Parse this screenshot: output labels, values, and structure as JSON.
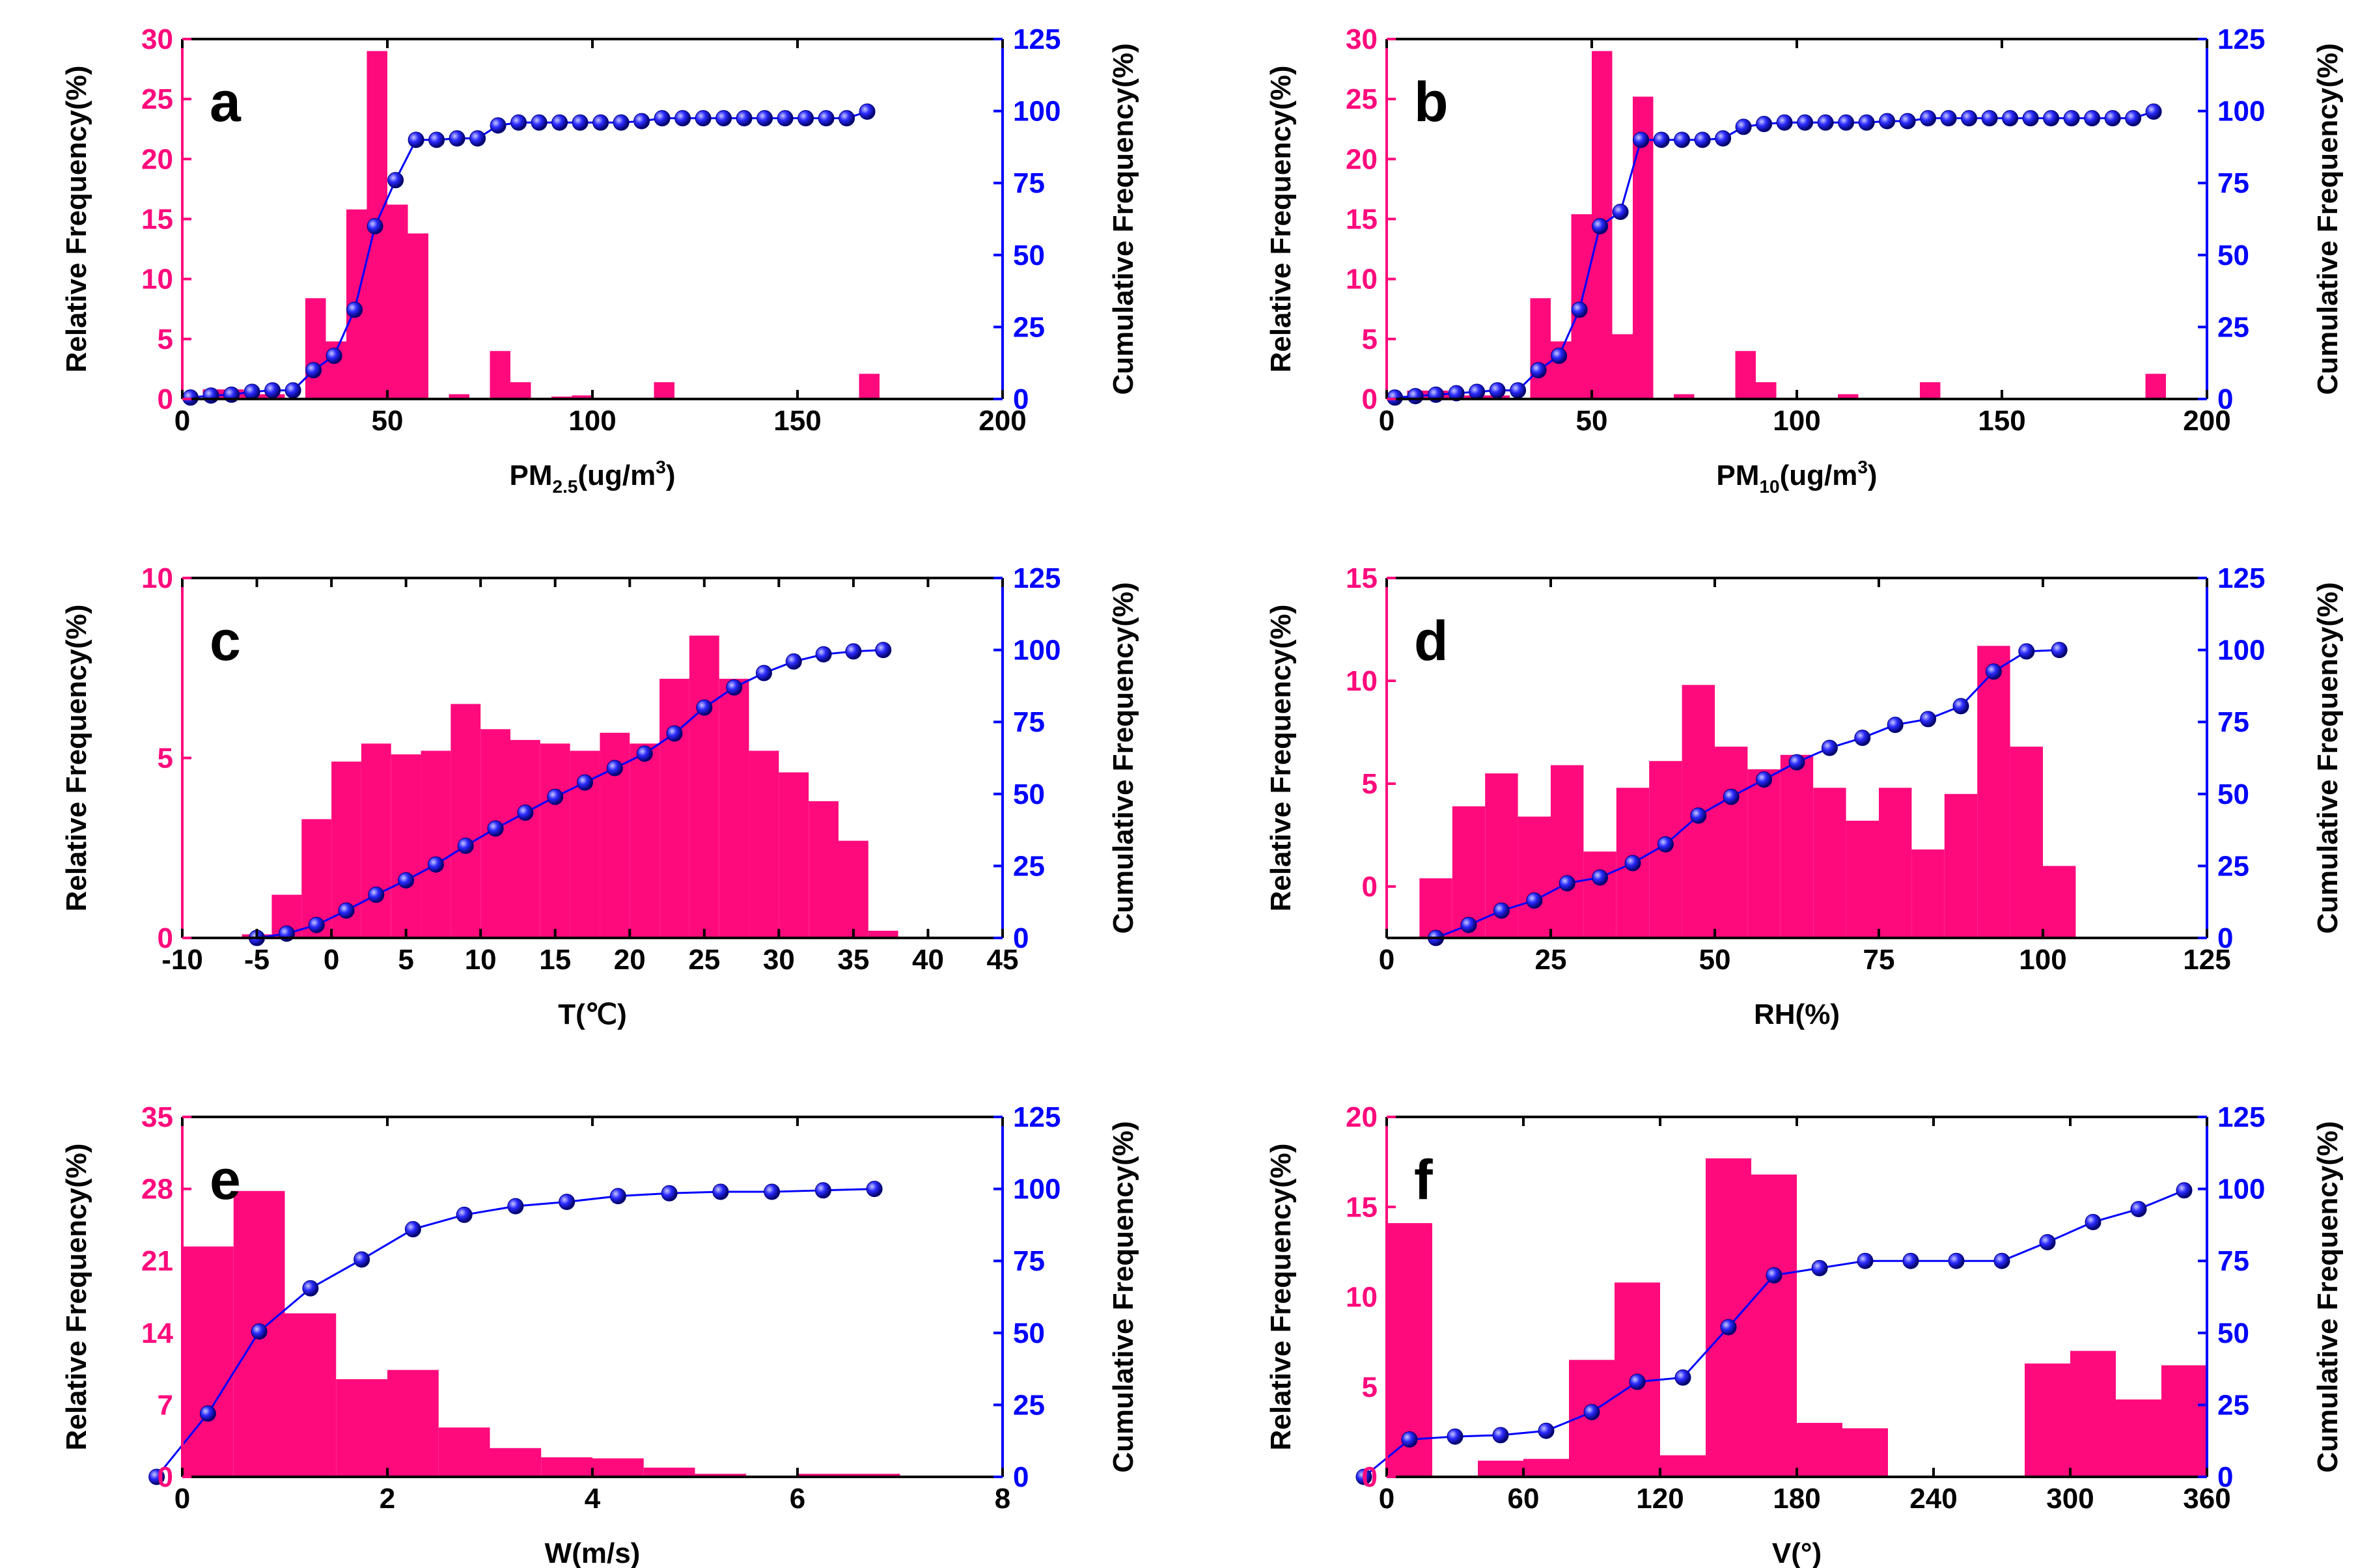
{
  "colors": {
    "bar": "#ff0a7c",
    "left_axis": "#ff0a7c",
    "right_axis": "#0000ff",
    "line": "#0000ff",
    "axes": "#000000"
  },
  "chart_data": [
    {
      "type": "bar",
      "letter": "a",
      "title": "",
      "xlabel": {
        "main": "PM",
        "sub": "2.5",
        "unit_pre": "(ug/m",
        "sup": "3",
        "unit_post": ")"
      },
      "ylabel_left": "Relative Frequency(%)",
      "ylabel_right": "Cumulative Frequency(%)",
      "xlim": [
        0,
        200
      ],
      "xticks": [
        "0",
        "50",
        "100",
        "150",
        "200"
      ],
      "ylim_left": [
        0,
        30
      ],
      "yticks_left": [
        "0",
        "5",
        "10",
        "15",
        "20",
        "25",
        "30"
      ],
      "ylim_right": [
        0,
        125
      ],
      "yticks_right": [
        "0",
        "25",
        "50",
        "75",
        "100",
        "125"
      ],
      "bars": [
        [
          5,
          10,
          0.8
        ],
        [
          10,
          15,
          0.8
        ],
        [
          15,
          20,
          0.4
        ],
        [
          20,
          25,
          0.4
        ],
        [
          30,
          35,
          8.4
        ],
        [
          35,
          40,
          4.8
        ],
        [
          40,
          45,
          15.8
        ],
        [
          45,
          50,
          29
        ],
        [
          50,
          55,
          16.2
        ],
        [
          55,
          60,
          13.8
        ],
        [
          65,
          70,
          0.4
        ],
        [
          75,
          80,
          4
        ],
        [
          80,
          85,
          1.4
        ],
        [
          90,
          95,
          0.2
        ],
        [
          95,
          100,
          0.3
        ],
        [
          115,
          120,
          1.4
        ],
        [
          165,
          170,
          2.1
        ]
      ],
      "cumulative": [
        [
          2,
          0.5
        ],
        [
          7,
          1.2
        ],
        [
          12,
          1.5
        ],
        [
          17,
          2.5
        ],
        [
          22,
          3
        ],
        [
          27,
          3
        ],
        [
          32,
          10
        ],
        [
          37,
          15
        ],
        [
          42,
          31
        ],
        [
          47,
          60
        ],
        [
          52,
          76
        ],
        [
          57,
          90
        ],
        [
          62,
          90
        ],
        [
          67,
          90.5
        ],
        [
          72,
          90.5
        ],
        [
          77,
          95
        ],
        [
          82,
          96
        ],
        [
          87,
          96
        ],
        [
          92,
          96
        ],
        [
          97,
          96
        ],
        [
          102,
          96
        ],
        [
          107,
          96
        ],
        [
          112,
          96.5
        ],
        [
          117,
          97.5
        ],
        [
          122,
          97.5
        ],
        [
          127,
          97.5
        ],
        [
          132,
          97.5
        ],
        [
          137,
          97.5
        ],
        [
          142,
          97.5
        ],
        [
          147,
          97.5
        ],
        [
          152,
          97.5
        ],
        [
          157,
          97.5
        ],
        [
          162,
          97.5
        ],
        [
          167,
          99.8
        ]
      ]
    },
    {
      "type": "bar",
      "letter": "b",
      "title": "",
      "xlabel": {
        "main": "PM",
        "sub": "10",
        "unit_pre": "(ug/m",
        "sup": "3",
        "unit_post": ")"
      },
      "ylabel_left": "Relative Frequency(%)",
      "ylabel_right": "Cumulative Frequency(%)",
      "xlim": [
        0,
        200
      ],
      "xticks": [
        "0",
        "50",
        "100",
        "150",
        "200"
      ],
      "ylim_left": [
        0,
        30
      ],
      "yticks_left": [
        "0",
        "5",
        "10",
        "15",
        "20",
        "25",
        "30"
      ],
      "ylim_right": [
        0,
        125
      ],
      "yticks_right": [
        "0",
        "25",
        "50",
        "75",
        "100",
        "125"
      ],
      "bars": [
        [
          5,
          10,
          0.7
        ],
        [
          10,
          15,
          0.7
        ],
        [
          15,
          20,
          0.3
        ],
        [
          20,
          25,
          0.3
        ],
        [
          25,
          30,
          0.3
        ],
        [
          35,
          40,
          8.4
        ],
        [
          40,
          45,
          4.8
        ],
        [
          45,
          50,
          15.4
        ],
        [
          50,
          55,
          29
        ],
        [
          55,
          60,
          5.4
        ],
        [
          60,
          65,
          25.2
        ],
        [
          70,
          75,
          0.4
        ],
        [
          85,
          90,
          4
        ],
        [
          90,
          95,
          1.4
        ],
        [
          110,
          115,
          0.4
        ],
        [
          130,
          135,
          1.4
        ],
        [
          185,
          190,
          2.1
        ]
      ],
      "cumulative": [
        [
          2,
          0.5
        ],
        [
          7,
          1
        ],
        [
          12,
          1.5
        ],
        [
          17,
          2
        ],
        [
          22,
          2.5
        ],
        [
          27,
          3
        ],
        [
          32,
          3
        ],
        [
          37,
          10
        ],
        [
          42,
          15
        ],
        [
          47,
          31
        ],
        [
          52,
          60
        ],
        [
          57,
          65
        ],
        [
          62,
          90
        ],
        [
          67,
          90
        ],
        [
          72,
          90
        ],
        [
          77,
          90
        ],
        [
          82,
          90.5
        ],
        [
          87,
          94.5
        ],
        [
          92,
          95.5
        ],
        [
          97,
          96
        ],
        [
          102,
          96
        ],
        [
          107,
          96
        ],
        [
          112,
          96
        ],
        [
          117,
          96
        ],
        [
          122,
          96.5
        ],
        [
          127,
          96.5
        ],
        [
          132,
          97.5
        ],
        [
          137,
          97.5
        ],
        [
          142,
          97.5
        ],
        [
          147,
          97.5
        ],
        [
          152,
          97.5
        ],
        [
          157,
          97.5
        ],
        [
          162,
          97.5
        ],
        [
          167,
          97.5
        ],
        [
          172,
          97.5
        ],
        [
          177,
          97.5
        ],
        [
          182,
          97.5
        ],
        [
          187,
          99.8
        ]
      ]
    },
    {
      "type": "bar",
      "letter": "c",
      "title": "",
      "xlabel": {
        "main": "T(℃)",
        "sub": "",
        "unit_pre": "",
        "sup": "",
        "unit_post": ""
      },
      "ylabel_left": "Relative Frequency(%)",
      "ylabel_right": "Cumulative Frequency(%)",
      "xlim": [
        -10,
        45
      ],
      "xticks": [
        "-10",
        "-5",
        "0",
        "5",
        "10",
        "15",
        "20",
        "25",
        "30",
        "35",
        "40",
        "45"
      ],
      "ylim_left": [
        0,
        10
      ],
      "yticks_left": [
        "0",
        "5",
        "10"
      ],
      "ylim_right": [
        0,
        125
      ],
      "yticks_right": [
        "0",
        "25",
        "50",
        "75",
        "100",
        "125"
      ],
      "bars": [
        [
          -6,
          -4,
          0.1
        ],
        [
          -4,
          -2,
          1.2
        ],
        [
          -2,
          0,
          3.3
        ],
        [
          0,
          2,
          4.9
        ],
        [
          2,
          4,
          5.4
        ],
        [
          4,
          6,
          5.1
        ],
        [
          6,
          8,
          5.2
        ],
        [
          8,
          10,
          6.5
        ],
        [
          10,
          12,
          5.8
        ],
        [
          12,
          14,
          5.5
        ],
        [
          14,
          16,
          5.4
        ],
        [
          16,
          18,
          5.2
        ],
        [
          18,
          20,
          5.7
        ],
        [
          20,
          22,
          5.4
        ],
        [
          22,
          24,
          7.2
        ],
        [
          24,
          26,
          8.4
        ],
        [
          26,
          28,
          7.2
        ],
        [
          28,
          30,
          5.2
        ],
        [
          30,
          32,
          4.6
        ],
        [
          32,
          34,
          3.8
        ],
        [
          34,
          36,
          2.7
        ],
        [
          36,
          38,
          0.2
        ]
      ],
      "cumulative": [
        [
          -5,
          0
        ],
        [
          -3,
          1.5
        ],
        [
          -1,
          4.5
        ],
        [
          1,
          9.5
        ],
        [
          3,
          15
        ],
        [
          5,
          20
        ],
        [
          7,
          25.5
        ],
        [
          9,
          32
        ],
        [
          11,
          38
        ],
        [
          13,
          43.5
        ],
        [
          15,
          49
        ],
        [
          17,
          54
        ],
        [
          19,
          59
        ],
        [
          21,
          64
        ],
        [
          23,
          71
        ],
        [
          25,
          80
        ],
        [
          27,
          87
        ],
        [
          29,
          92
        ],
        [
          31,
          96
        ],
        [
          33,
          98.5
        ],
        [
          35,
          99.5
        ],
        [
          37,
          100
        ]
      ]
    },
    {
      "type": "bar",
      "letter": "d",
      "title": "",
      "xlabel": {
        "main": "RH(%)",
        "sub": "",
        "unit_pre": "",
        "sup": "",
        "unit_post": ""
      },
      "ylabel_left": "Relative Frequency(%)",
      "ylabel_right": "Cumulative Frequency(%)",
      "xlim": [
        0,
        125
      ],
      "xticks": [
        "0",
        "25",
        "50",
        "75",
        "100",
        "125"
      ],
      "ylim_left": [
        -2.5,
        15
      ],
      "yticks_left": [
        "0",
        "5",
        "10",
        "15"
      ],
      "ylim_right": [
        0,
        125
      ],
      "yticks_right": [
        "0",
        "25",
        "50",
        "75",
        "100",
        "125"
      ],
      "bars": [
        [
          5,
          10,
          0.4
        ],
        [
          10,
          15,
          3.9
        ],
        [
          15,
          20,
          5.5
        ],
        [
          20,
          25,
          3.4
        ],
        [
          25,
          30,
          5.9
        ],
        [
          30,
          35,
          1.7
        ],
        [
          35,
          40,
          4.8
        ],
        [
          40,
          45,
          6.1
        ],
        [
          45,
          50,
          9.8
        ],
        [
          50,
          55,
          6.8
        ],
        [
          55,
          60,
          5.7
        ],
        [
          60,
          65,
          6.4
        ],
        [
          65,
          70,
          4.8
        ],
        [
          70,
          75,
          3.2
        ],
        [
          75,
          80,
          4.8
        ],
        [
          80,
          85,
          1.8
        ],
        [
          85,
          90,
          4.5
        ],
        [
          90,
          95,
          11.7
        ],
        [
          95,
          100,
          6.8
        ],
        [
          100,
          105,
          1.0
        ]
      ],
      "cumulative": [
        [
          7.5,
          0
        ],
        [
          12.5,
          4.5
        ],
        [
          17.5,
          9.5
        ],
        [
          22.5,
          13
        ],
        [
          27.5,
          19
        ],
        [
          32.5,
          21
        ],
        [
          37.5,
          26
        ],
        [
          42.5,
          32.5
        ],
        [
          47.5,
          42.5
        ],
        [
          52.5,
          49
        ],
        [
          57.5,
          55
        ],
        [
          62.5,
          61
        ],
        [
          67.5,
          66
        ],
        [
          72.5,
          69.5
        ],
        [
          77.5,
          74
        ],
        [
          82.5,
          76
        ],
        [
          87.5,
          80.5
        ],
        [
          92.5,
          92.5
        ],
        [
          97.5,
          99.5
        ],
        [
          102.5,
          100
        ]
      ]
    },
    {
      "type": "bar",
      "letter": "e",
      "title": "",
      "xlabel": {
        "main": "W(m/s)",
        "sub": "",
        "unit_pre": "",
        "sup": "",
        "unit_post": ""
      },
      "ylabel_left": "Relative Frequency(%)",
      "ylabel_right": "Cumulative Frequency(%)",
      "xlim": [
        0,
        8
      ],
      "xticks": [
        "0",
        "2",
        "4",
        "6",
        "8"
      ],
      "ylim_left": [
        0,
        35
      ],
      "yticks_left": [
        "0",
        "7",
        "14",
        "21",
        "28",
        "35"
      ],
      "ylim_right": [
        0,
        125
      ],
      "yticks_right": [
        "0",
        "25",
        "50",
        "75",
        "100",
        "125"
      ],
      "bars": [
        [
          0,
          0.5,
          22.4
        ],
        [
          0.5,
          1,
          27.8
        ],
        [
          1,
          1.5,
          15.9
        ],
        [
          1.5,
          2,
          9.5
        ],
        [
          2,
          2.5,
          10.4
        ],
        [
          2.5,
          3,
          4.8
        ],
        [
          3,
          3.5,
          2.8
        ],
        [
          3.5,
          4,
          1.9
        ],
        [
          4,
          4.5,
          1.8
        ],
        [
          4.5,
          5,
          0.9
        ],
        [
          5,
          5.5,
          0.3
        ],
        [
          6,
          7,
          0.3
        ]
      ],
      "cumulative": [
        [
          -0.25,
          0
        ],
        [
          0.25,
          22
        ],
        [
          0.75,
          50.5
        ],
        [
          1.25,
          65.5
        ],
        [
          1.75,
          75.5
        ],
        [
          2.25,
          86
        ],
        [
          2.75,
          91
        ],
        [
          3.25,
          94
        ],
        [
          3.75,
          95.5
        ],
        [
          4.25,
          97.5
        ],
        [
          4.75,
          98.5
        ],
        [
          5.25,
          99
        ],
        [
          5.75,
          99
        ],
        [
          6.25,
          99.5
        ],
        [
          6.75,
          100
        ]
      ]
    },
    {
      "type": "bar",
      "letter": "f",
      "title": "",
      "xlabel": {
        "main": "V(°)",
        "sub": "",
        "unit_pre": "",
        "sup": "",
        "unit_post": ""
      },
      "ylabel_left": "Relative Frequency(%)",
      "ylabel_right": "Cumulative Frequency(%)",
      "xlim": [
        0,
        360
      ],
      "xticks": [
        "0",
        "60",
        "120",
        "180",
        "240",
        "300",
        "360"
      ],
      "ylim_left": [
        0,
        20
      ],
      "yticks_left": [
        "0",
        "5",
        "10",
        "15",
        "20"
      ],
      "ylim_right": [
        0,
        125
      ],
      "yticks_right": [
        "0",
        "25",
        "50",
        "75",
        "100",
        "125"
      ],
      "bars": [
        [
          0,
          20,
          14.1
        ],
        [
          40,
          60,
          0.9
        ],
        [
          60,
          80,
          1.0
        ],
        [
          80,
          100,
          6.5
        ],
        [
          100,
          120,
          10.8
        ],
        [
          120,
          140,
          1.2
        ],
        [
          140,
          160,
          17.7
        ],
        [
          160,
          180,
          16.8
        ],
        [
          180,
          200,
          3.0
        ],
        [
          200,
          220,
          2.7
        ],
        [
          280,
          300,
          6.3
        ],
        [
          300,
          320,
          7.0
        ],
        [
          320,
          340,
          4.3
        ],
        [
          340,
          360,
          6.2
        ]
      ],
      "cumulative": [
        [
          -10,
          0
        ],
        [
          10,
          13
        ],
        [
          30,
          14
        ],
        [
          50,
          14.5
        ],
        [
          70,
          16
        ],
        [
          90,
          22.5
        ],
        [
          110,
          33
        ],
        [
          130,
          34.5
        ],
        [
          150,
          52
        ],
        [
          170,
          70
        ],
        [
          190,
          72.5
        ],
        [
          210,
          75
        ],
        [
          230,
          75
        ],
        [
          250,
          75
        ],
        [
          270,
          75
        ],
        [
          290,
          81.5
        ],
        [
          310,
          88.5
        ],
        [
          330,
          93
        ],
        [
          350,
          99.5
        ]
      ]
    }
  ]
}
